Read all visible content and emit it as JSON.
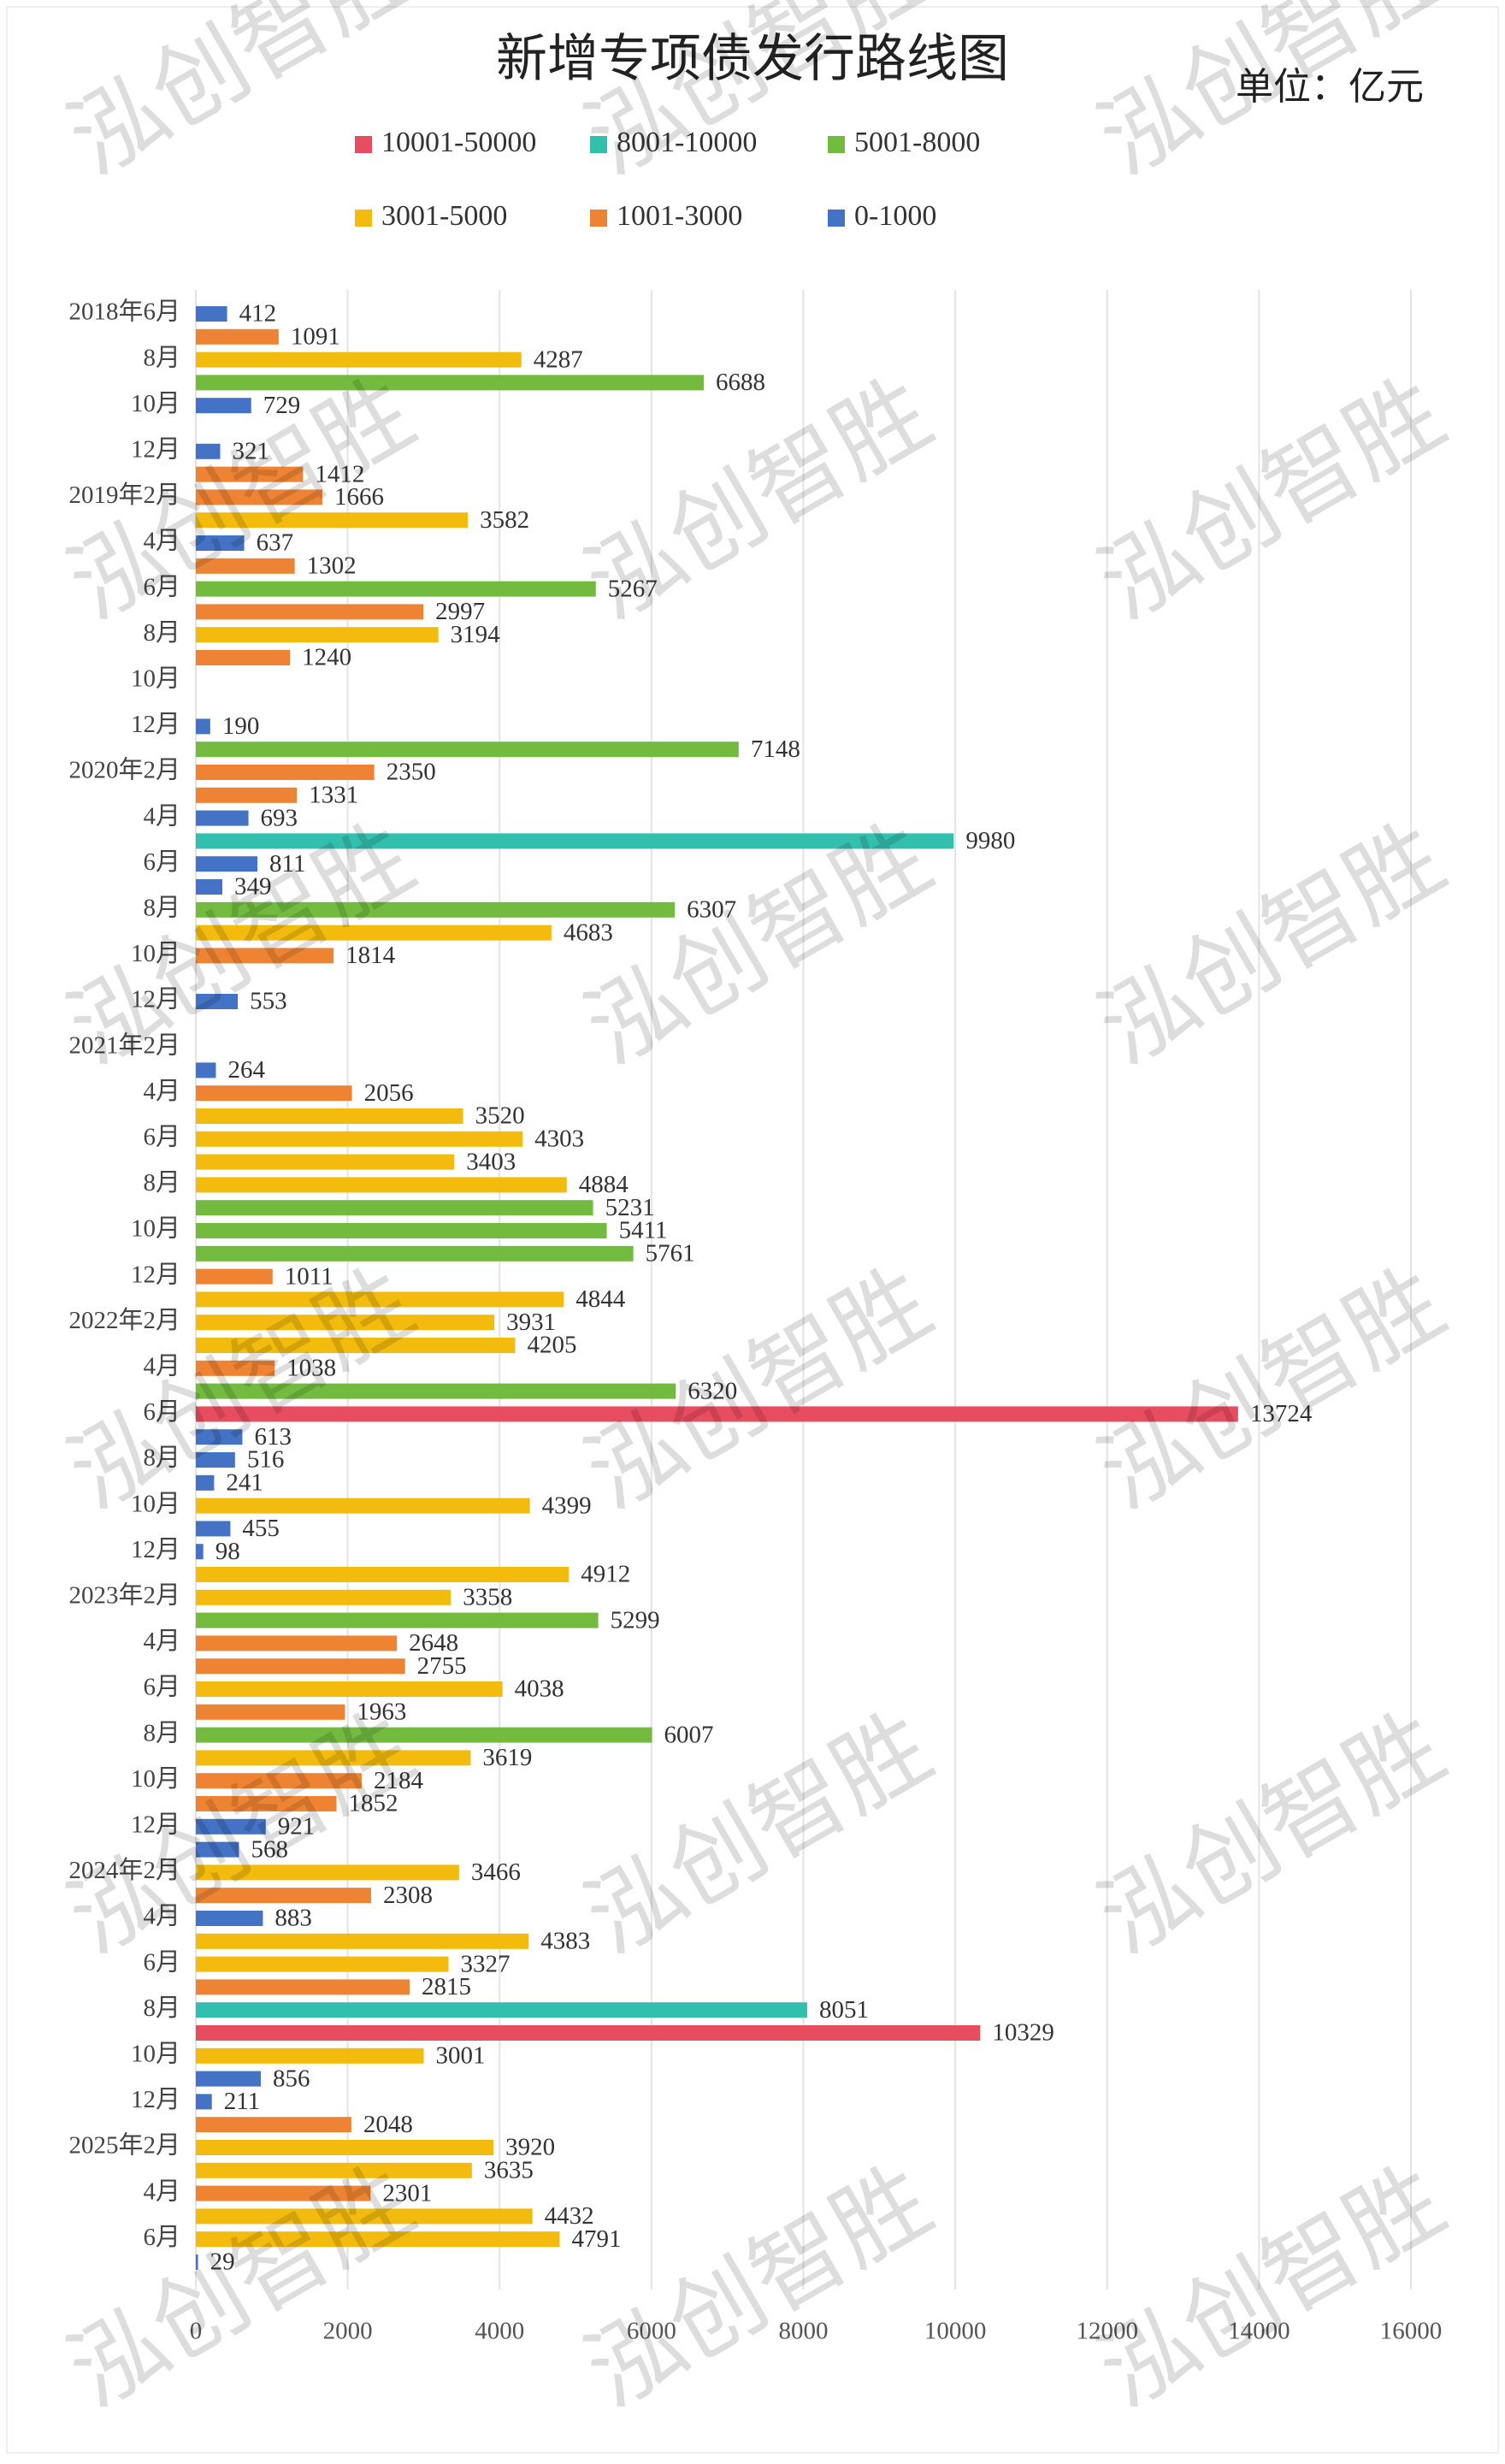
{
  "chart_data": {
    "type": "hbar",
    "title": "新增专项债发行路线图",
    "unit": "单位：亿元",
    "watermark": "泓创智胜",
    "series": [
      {
        "name": "10001-50000",
        "color": "#e84c5f"
      },
      {
        "name": "8001-10000",
        "color": "#33bfae"
      },
      {
        "name": "5001-8000",
        "color": "#72bb3f"
      },
      {
        "name": "3001-5000",
        "color": "#f3bb0d"
      },
      {
        "name": "1001-3000",
        "color": "#ee8433"
      },
      {
        "name": "0-1000",
        "color": "#4472c4"
      }
    ],
    "categories": [
      "2018年6月",
      null,
      "8月",
      null,
      "10月",
      null,
      "12月",
      null,
      "2019年2月",
      null,
      "4月",
      null,
      "6月",
      null,
      "8月",
      null,
      "10月",
      null,
      "12月",
      null,
      "2020年2月",
      null,
      "4月",
      null,
      "6月",
      null,
      "8月",
      null,
      "10月",
      null,
      "12月",
      null,
      "2021年2月",
      null,
      "4月",
      null,
      "6月",
      null,
      "8月",
      null,
      "10月",
      null,
      "12月",
      null,
      "2022年2月",
      null,
      "4月",
      null,
      "6月",
      null,
      "8月",
      null,
      "10月",
      null,
      "12月",
      null,
      "2023年2月",
      null,
      "4月",
      null,
      "6月",
      null,
      "8月",
      null,
      "10月",
      null,
      "12月",
      null,
      "2024年2月",
      null,
      "4月",
      null,
      "6月",
      null,
      "8月",
      null,
      "10月",
      null,
      "12月",
      null,
      "2025年2月",
      null,
      "4月",
      null,
      "6月",
      null
    ],
    "values": [
      412,
      1091,
      4287,
      6688,
      729,
      null,
      321,
      1412,
      1666,
      3582,
      637,
      1302,
      5267,
      2997,
      3194,
      1240,
      null,
      null,
      190,
      7148,
      2350,
      1331,
      693,
      9980,
      811,
      349,
      6307,
      4683,
      1814,
      null,
      553,
      null,
      null,
      264,
      2056,
      3520,
      4303,
      3403,
      4884,
      5231,
      5411,
      5761,
      1011,
      4844,
      3931,
      4205,
      1038,
      6320,
      13724,
      613,
      516,
      241,
      4399,
      455,
      98,
      4912,
      3358,
      5299,
      2648,
      2755,
      4038,
      1963,
      6007,
      3619,
      2184,
      1852,
      921,
      568,
      3466,
      2308,
      883,
      4383,
      3327,
      2815,
      8051,
      10329,
      3001,
      856,
      211,
      2048,
      3920,
      3635,
      2301,
      4432,
      4791,
      29
    ],
    "xlim": [
      0,
      16000
    ],
    "xticks": [
      0,
      2000,
      4000,
      6000,
      8000,
      10000,
      12000,
      14000,
      16000
    ],
    "grid": true
  }
}
